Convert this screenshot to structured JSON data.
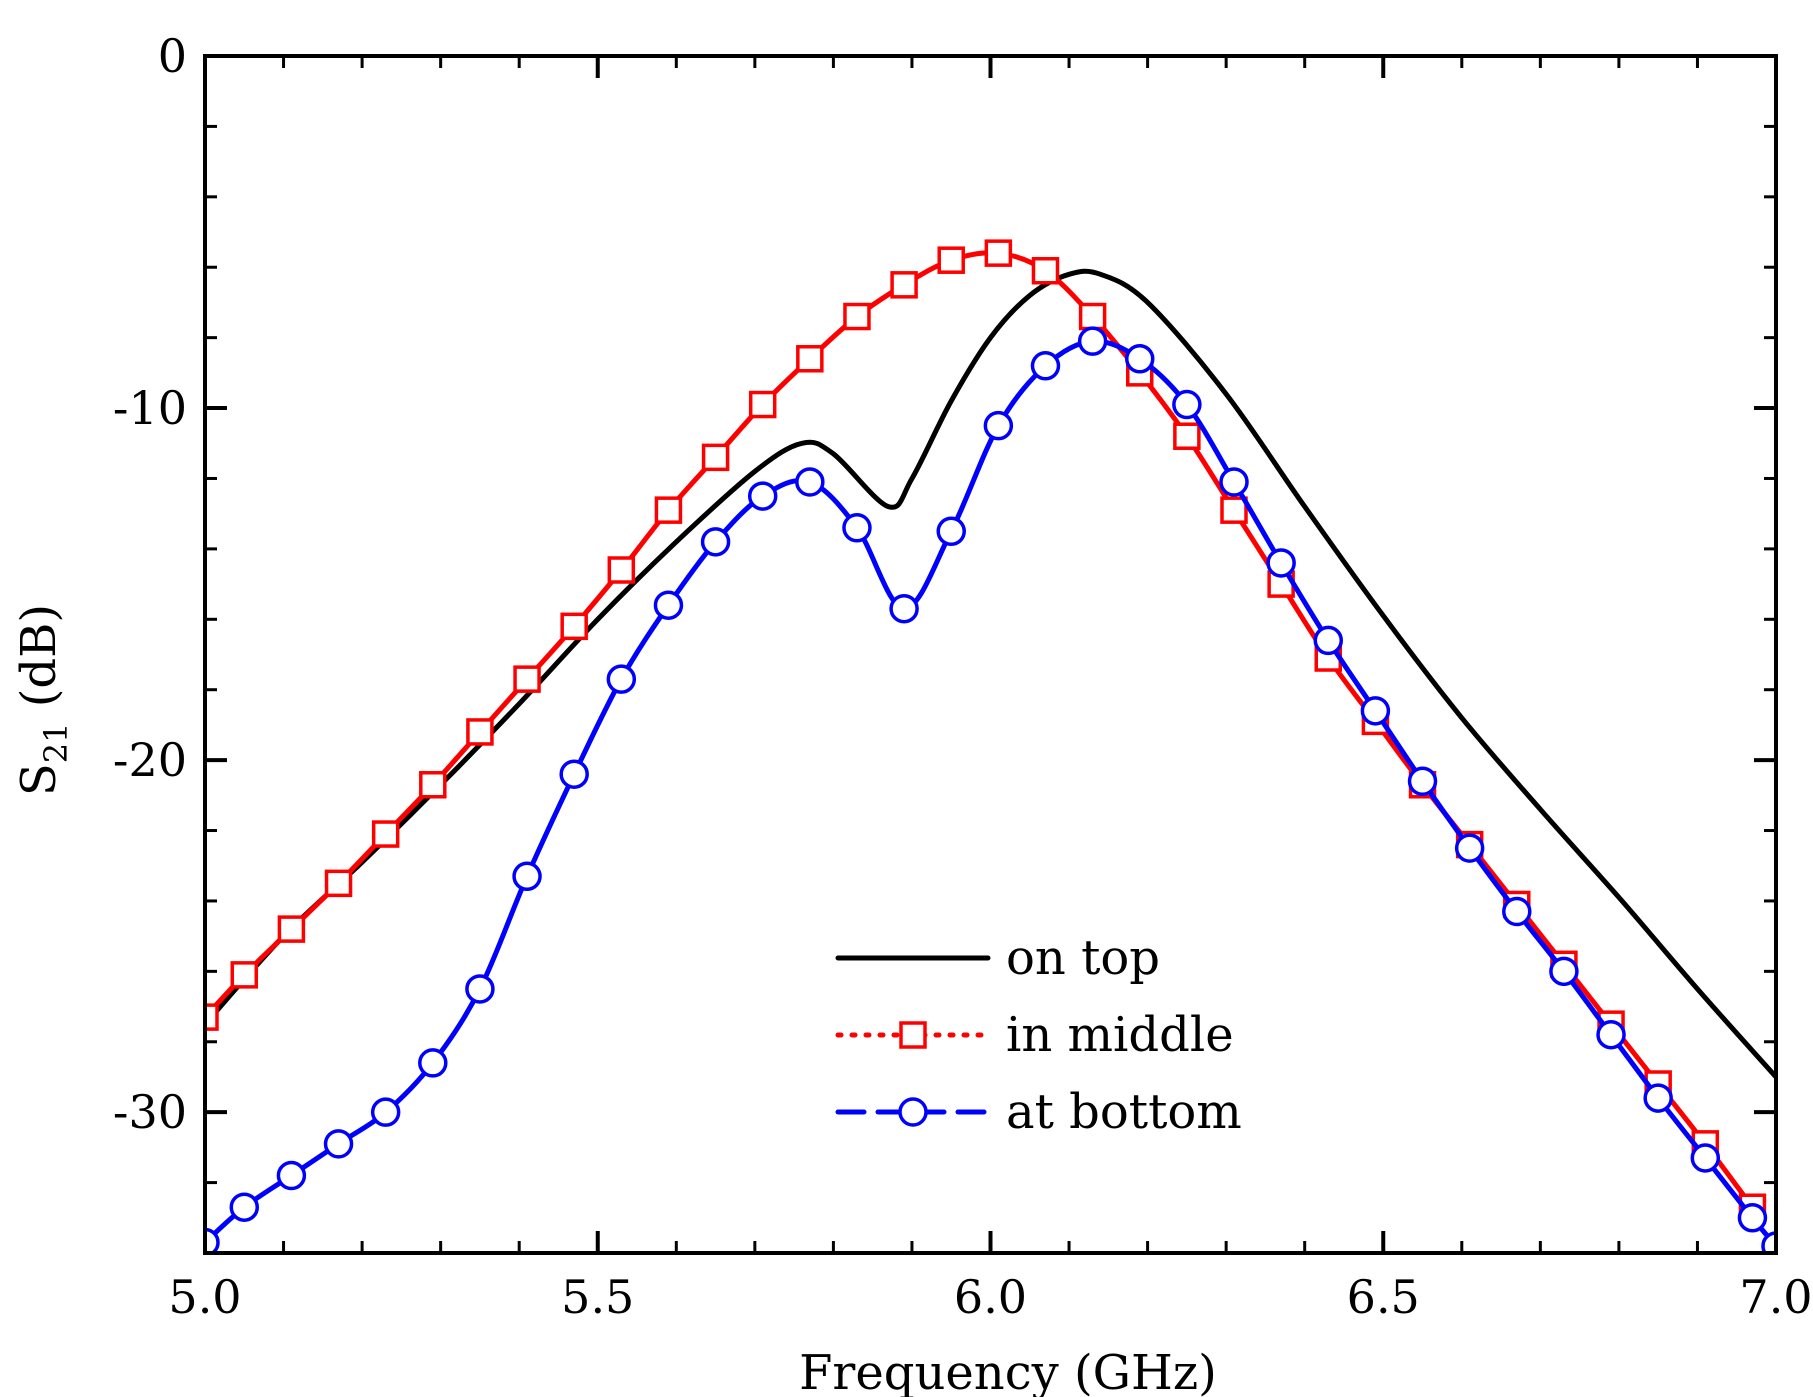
{
  "chart_data": {
    "type": "line",
    "title": "",
    "xlabel": "Frequency (GHz)",
    "ylabel": {
      "main": "S",
      "subscript": "21",
      "unit": " (dB)"
    },
    "xlim": [
      5.0,
      7.0
    ],
    "ylim": [
      -34,
      0
    ],
    "xticks": [
      {
        "value": 5.0,
        "label": "5.0"
      },
      {
        "value": 5.5,
        "label": "5.5"
      },
      {
        "value": 6.0,
        "label": "6.0"
      },
      {
        "value": 6.5,
        "label": "6.5"
      },
      {
        "value": 7.0,
        "label": "7.0"
      }
    ],
    "yticks": [
      {
        "value": 0,
        "label": "0"
      },
      {
        "value": -10,
        "label": "-10"
      },
      {
        "value": -20,
        "label": "-20"
      },
      {
        "value": -30,
        "label": "-30"
      }
    ],
    "x_minor_step": 0.1,
    "y_minor_step": 2,
    "grid": false,
    "legend_position": "bottom-right",
    "series": [
      {
        "name": "on top",
        "color": "#000000",
        "line_style": "solid",
        "marker": "none",
        "x": [
          5.0,
          5.1,
          5.2,
          5.3,
          5.4,
          5.5,
          5.6,
          5.7,
          5.76,
          5.8,
          5.87,
          5.9,
          5.95,
          6.0,
          6.05,
          6.1,
          6.14,
          6.2,
          6.3,
          6.4,
          6.5,
          6.6,
          6.7,
          6.8,
          6.9,
          7.0
        ],
        "y": [
          -27.5,
          -25.0,
          -22.9,
          -20.7,
          -18.4,
          -16.0,
          -13.8,
          -11.8,
          -11.0,
          -11.3,
          -12.8,
          -12.0,
          -9.8,
          -8.0,
          -6.8,
          -6.2,
          -6.2,
          -7.0,
          -9.6,
          -12.8,
          -15.9,
          -18.8,
          -21.4,
          -23.9,
          -26.5,
          -29.0
        ]
      },
      {
        "name": "in middle",
        "color": "#ff0000",
        "line_style": "dotted",
        "marker": "square",
        "x": [
          5.0,
          5.05,
          5.11,
          5.17,
          5.23,
          5.29,
          5.35,
          5.41,
          5.47,
          5.53,
          5.59,
          5.65,
          5.71,
          5.77,
          5.83,
          5.89,
          5.95,
          6.01,
          6.07,
          6.13,
          6.19,
          6.25,
          6.31,
          6.37,
          6.43,
          6.49,
          6.55,
          6.61,
          6.67,
          6.73,
          6.79,
          6.85,
          6.91,
          6.97
        ],
        "y": [
          -27.3,
          -26.1,
          -24.8,
          -23.5,
          -22.1,
          -20.7,
          -19.2,
          -17.7,
          -16.2,
          -14.6,
          -12.9,
          -11.4,
          -9.9,
          -8.6,
          -7.4,
          -6.5,
          -5.8,
          -5.6,
          -6.1,
          -7.4,
          -9.0,
          -10.8,
          -12.9,
          -15.0,
          -17.1,
          -18.9,
          -20.7,
          -22.4,
          -24.1,
          -25.8,
          -27.5,
          -29.2,
          -30.9,
          -32.7
        ]
      },
      {
        "name": "at bottom",
        "color": "#0000ff",
        "line_style": "dashed",
        "marker": "circle",
        "x": [
          5.0,
          5.05,
          5.11,
          5.17,
          5.23,
          5.29,
          5.35,
          5.41,
          5.47,
          5.53,
          5.59,
          5.65,
          5.71,
          5.77,
          5.83,
          5.89,
          5.95,
          6.01,
          6.07,
          6.13,
          6.19,
          6.25,
          6.31,
          6.37,
          6.43,
          6.49,
          6.55,
          6.61,
          6.67,
          6.73,
          6.79,
          6.85,
          6.91,
          6.97,
          7.0
        ],
        "y": [
          -33.7,
          -32.7,
          -31.8,
          -30.9,
          -30.0,
          -28.6,
          -26.5,
          -23.3,
          -20.4,
          -17.7,
          -15.6,
          -13.8,
          -12.5,
          -12.1,
          -13.4,
          -15.7,
          -13.5,
          -10.5,
          -8.8,
          -8.1,
          -8.6,
          -9.9,
          -12.1,
          -14.4,
          -16.6,
          -18.6,
          -20.6,
          -22.5,
          -24.3,
          -26.0,
          -27.8,
          -29.6,
          -31.3,
          -33.0,
          -33.8
        ]
      }
    ]
  }
}
